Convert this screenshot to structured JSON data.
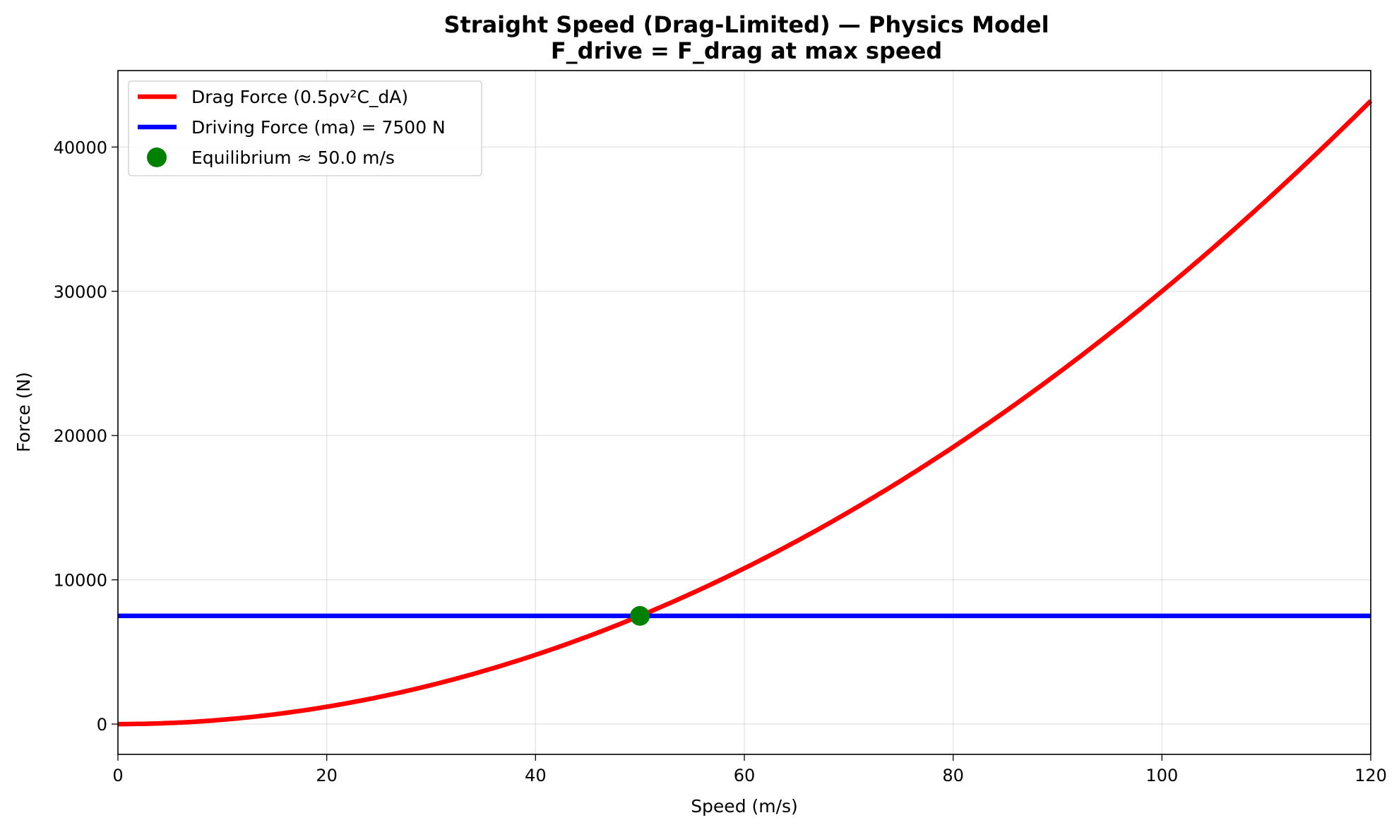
{
  "chart_data": {
    "type": "line",
    "title": "Straight Speed (Drag-Limited) — Physics Model",
    "subtitle": "F_drive = F_drag at max speed",
    "xlabel": "Speed (m/s)",
    "ylabel": "Force (N)",
    "xlim": [
      0,
      120
    ],
    "ylim": [
      -2100,
      45300
    ],
    "xticks": [
      0,
      20,
      40,
      60,
      80,
      100,
      120
    ],
    "yticks": [
      0,
      10000,
      20000,
      30000,
      40000
    ],
    "grid": true,
    "legend_position": "top-left",
    "series": [
      {
        "name": "Drag Force (0.5ρv²C_dA)",
        "color": "#ff0000",
        "kind": "curve",
        "formula": "F = 3.0 * v^2",
        "x": [
          0,
          10,
          20,
          30,
          40,
          50,
          60,
          70,
          80,
          90,
          100,
          110,
          120
        ],
        "values": [
          0,
          300,
          1200,
          2700,
          4800,
          7500,
          10800,
          14700,
          19200,
          24300,
          30000,
          36300,
          43200
        ]
      },
      {
        "name": "Driving Force (ma) = 7500 N",
        "color": "#0000ff",
        "kind": "hline",
        "x": [
          0,
          120
        ],
        "values": [
          7500,
          7500
        ]
      },
      {
        "name": "Equilibrium ≈ 50.0 m/s",
        "color": "#008000",
        "kind": "point",
        "x": [
          50
        ],
        "values": [
          7500
        ]
      }
    ]
  }
}
